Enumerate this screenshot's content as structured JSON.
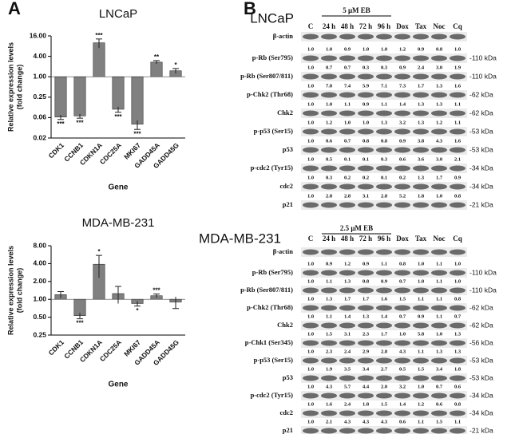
{
  "panel_labels": [
    "A",
    "B"
  ],
  "chart_data": [
    {
      "type": "bar",
      "title": "LNCaP",
      "y_label": [
        "Relative expression levels",
        "(fold change)"
      ],
      "x_label": "Gene",
      "log_scale": true,
      "baseline": 1,
      "color": "#808080",
      "categories": [
        "CDK1",
        "CCNB1",
        "CDKN1A",
        "CDC25A",
        "MKI67",
        "GADD45A",
        "GADD45G"
      ],
      "values": [
        0.065,
        0.07,
        10,
        0.11,
        0.04,
        2.7,
        1.5
      ],
      "errors": [
        0.01,
        0.01,
        3,
        0.02,
        0.012,
        0.3,
        0.25
      ],
      "annotations": [
        "***",
        "***",
        "***",
        "***",
        "***",
        "**",
        "*"
      ],
      "ylim": [
        0.015625,
        16
      ],
      "yticks": [
        {
          "value": 0.015625,
          "label": "0.02"
        },
        {
          "value": 0.0625,
          "label": "0.06"
        },
        0.25,
        {
          "value": 1,
          "label": "1.00"
        },
        {
          "value": 4,
          "label": "4.00"
        },
        {
          "value": 16,
          "label": "16.00"
        }
      ]
    },
    {
      "type": "bar",
      "title": "MDA-MB-231",
      "y_label": [
        "Relative expression levels",
        "(fold change)"
      ],
      "x_label": "Gene",
      "log_scale": true,
      "baseline": 1,
      "color": "#808080",
      "categories": [
        "CDK1",
        "CCNB1",
        "CDKN1A",
        "CDC25A",
        "MKI67",
        "GADD45A",
        "GADD45G"
      ],
      "values": [
        1.2,
        0.53,
        3.9,
        1.25,
        0.85,
        1.15,
        0.9
      ],
      "errors": [
        0.15,
        0.06,
        1.6,
        0.4,
        0.08,
        0.08,
        0.2
      ],
      "annotations": [
        null,
        "***",
        "*",
        null,
        "*",
        "***",
        null
      ],
      "ylim": [
        0.25,
        8
      ],
      "yticks": [
        0.25,
        {
          "value": 0.5,
          "label": "0.50"
        },
        {
          "value": 1,
          "label": "1.00"
        },
        {
          "value": 2,
          "label": "2.00"
        },
        {
          "value": 4,
          "label": "4.00"
        },
        {
          "value": 8,
          "label": "8.00"
        }
      ]
    }
  ],
  "blots": [
    {
      "cell_line": "LNCaP",
      "treatment": "5 μM EB",
      "lanes": [
        "C",
        "24 h",
        "48 h",
        "72 h",
        "96 h",
        "Dox",
        "Tax",
        "Noc",
        "Cq"
      ],
      "bands": [
        {
          "label": "β-actin"
        },
        {
          "label": "p-Rb (Ser795)",
          "kda": "-110 kDa",
          "quant": [
            "1.0",
            "1.0",
            "0.9",
            "1.0",
            "1.0",
            "1.2",
            "0.9",
            "0.8",
            "1.0"
          ]
        },
        {
          "label": "p-Rb (Ser807/811)",
          "kda": "-110 kDa",
          "quant": [
            "1.0",
            "0.7",
            "0.7",
            "0.3",
            "0.3",
            "0.9",
            "2.4",
            "3.0",
            "1.9"
          ]
        },
        {
          "label": "p-Chk2 (Thr68)",
          "kda": "-62 kDa",
          "quant": [
            "1.0",
            "7.0",
            "7.4",
            "5.9",
            "7.1",
            "7.3",
            "1.7",
            "1.3",
            "1.6"
          ]
        },
        {
          "label": "Chk2",
          "kda": "-62 kDa",
          "quant": [
            "1.0",
            "1.0",
            "1.1",
            "0.9",
            "1.1",
            "1.4",
            "1.3",
            "1.3",
            "1.1"
          ]
        },
        {
          "label": "p-p53 (Ser15)",
          "kda": "-53 kDa",
          "quant": [
            "1.0",
            "1.2",
            "1.0",
            "1.0",
            "1.3",
            "3.2",
            "1.3",
            "1.2",
            "1.1"
          ]
        },
        {
          "label": "p53",
          "kda": "-53 kDa",
          "quant": [
            "1.0",
            "0.6",
            "0.7",
            "0.8",
            "0.8",
            "0.9",
            "3.8",
            "4.3",
            "1.6"
          ]
        },
        {
          "label": "p-cdc2 (Tyr15)",
          "kda": "-34 kDa",
          "quant": [
            "1.0",
            "0.5",
            "0.1",
            "0.1",
            "0.3",
            "0.6",
            "3.6",
            "3.0",
            "2.1"
          ]
        },
        {
          "label": "cdc2",
          "kda": "-34 kDa",
          "quant": [
            "1.0",
            "0.3",
            "0.2",
            "0.2",
            "0.1",
            "0.2",
            "1.3",
            "1.7",
            "0.9"
          ]
        },
        {
          "label": "p21",
          "kda": "-21 kDa",
          "quant": [
            "1.0",
            "2.8",
            "2.8",
            "3.1",
            "2.8",
            "5.2",
            "1.8",
            "1.0",
            "0.8"
          ]
        }
      ]
    },
    {
      "cell_line": "MDA-MB-231",
      "treatment": "2.5 μM EB",
      "lanes": [
        "C",
        "24 h",
        "48 h",
        "72 h",
        "96 h",
        "Dox",
        "Tax",
        "Noc",
        "Cq"
      ],
      "bands": [
        {
          "label": "β-actin"
        },
        {
          "label": "p-Rb (Ser795)",
          "kda": "-110 kDa",
          "quant": [
            "1.0",
            "0.9",
            "1.2",
            "0.9",
            "1.1",
            "0.8",
            "1.0",
            "1.1",
            "1.0"
          ]
        },
        {
          "label": "p-Rb (Ser807/811)",
          "kda": "-110 kDa",
          "quant": [
            "1.0",
            "1.1",
            "1.3",
            "0.8",
            "0.9",
            "0.7",
            "1.0",
            "1.1",
            "1.0"
          ]
        },
        {
          "label": "p-Chk2 (Thr68)",
          "kda": "-62 kDa",
          "quant": [
            "1.0",
            "1.3",
            "1.7",
            "1.7",
            "1.6",
            "1.5",
            "1.1",
            "1.1",
            "0.8"
          ]
        },
        {
          "label": "Chk2",
          "kda": "-62 kDa",
          "quant": [
            "1.0",
            "1.1",
            "1.4",
            "1.3",
            "1.4",
            "0.7",
            "0.9",
            "1.1",
            "0.7"
          ]
        },
        {
          "label": "p-Chk1 (Ser345)",
          "kda": "-56 kDa",
          "quant": [
            "1.0",
            "1.5",
            "3.1",
            "2.3",
            "1.7",
            "1.0",
            "5.8",
            "1.0",
            "1.3"
          ]
        },
        {
          "label": "p-p53 (Ser15)",
          "kda": "-53 kDa",
          "quant": [
            "1.0",
            "2.3",
            "2.4",
            "2.9",
            "2.8",
            "4.3",
            "1.1",
            "1.3",
            "1.3"
          ]
        },
        {
          "label": "p53",
          "kda": "-53 kDa",
          "quant": [
            "1.0",
            "1.9",
            "3.5",
            "3.4",
            "2.7",
            "0.5",
            "1.5",
            "3.4",
            "1.8"
          ]
        },
        {
          "label": "p-cdc2 (Tyr15)",
          "kda": "-34 kDa",
          "quant": [
            "1.0",
            "4.3",
            "5.7",
            "4.4",
            "2.0",
            "3.2",
            "1.0",
            "0.7",
            "0.6"
          ]
        },
        {
          "label": "cdc2",
          "kda": "-34 kDa",
          "quant": [
            "1.0",
            "1.6",
            "2.4",
            "1.8",
            "1.5",
            "1.4",
            "1.2",
            "0.6",
            "0.8"
          ]
        },
        {
          "label": "p21",
          "kda": "-21 kDa",
          "quant": [
            "1.0",
            "2.1",
            "4.3",
            "4.3",
            "4.3",
            "0.6",
            "1.1",
            "1.5",
            "1.1"
          ]
        }
      ]
    }
  ]
}
